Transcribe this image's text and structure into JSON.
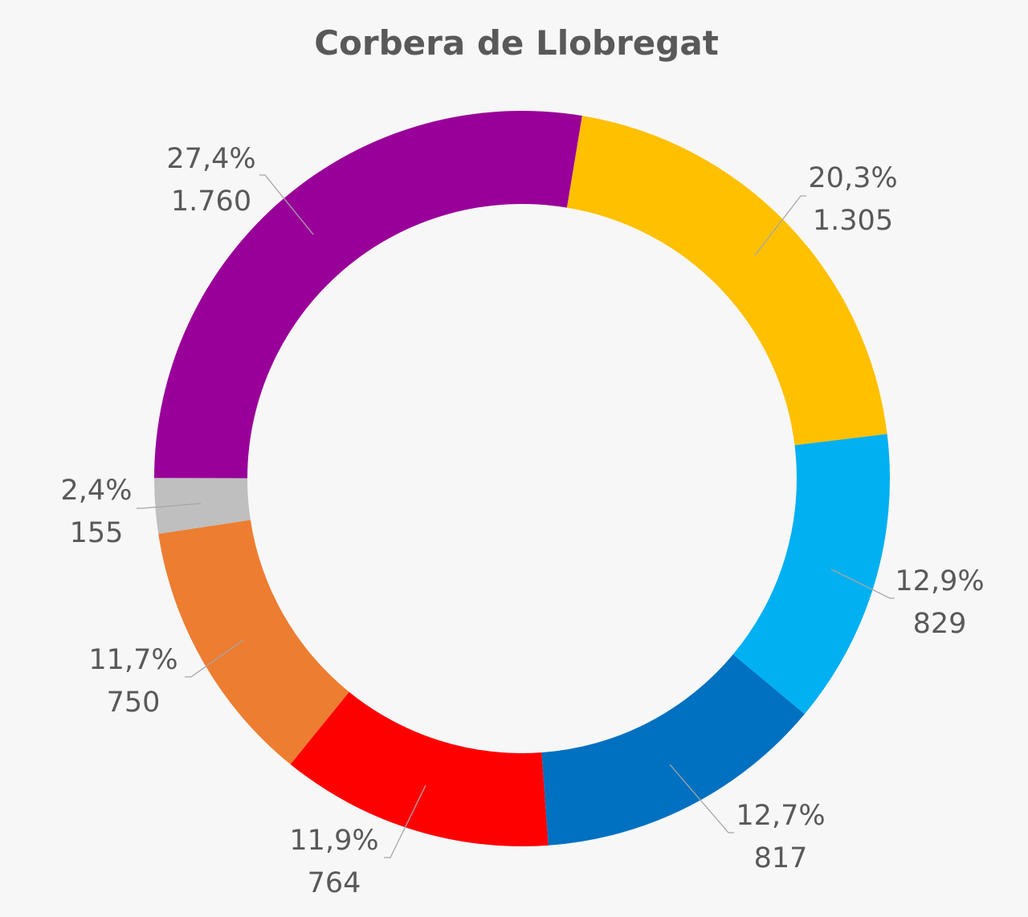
{
  "chart_data": {
    "type": "pie",
    "variant": "doughnut",
    "title": "Corbera de Llobregat",
    "legend": "none",
    "slices": [
      {
        "value": 1305,
        "percent_label": "20,3%",
        "value_label": "1.305",
        "color": "#FFC000"
      },
      {
        "value": 829,
        "percent_label": "12,9%",
        "value_label": "829",
        "color": "#00B0F0"
      },
      {
        "value": 817,
        "percent_label": "12,7%",
        "value_label": "817",
        "color": "#0070C0"
      },
      {
        "value": 764,
        "percent_label": "11,9%",
        "value_label": "764",
        "color": "#FF0000"
      },
      {
        "value": 750,
        "percent_label": "11,7%",
        "value_label": "750",
        "color": "#ED7D31"
      },
      {
        "value": 155,
        "percent_label": "2,4%",
        "value_label": "155",
        "color": "#BFBFBF"
      },
      {
        "value": 1760,
        "percent_label": "27,4%",
        "value_label": "1.760",
        "color": "#990099"
      }
    ]
  }
}
